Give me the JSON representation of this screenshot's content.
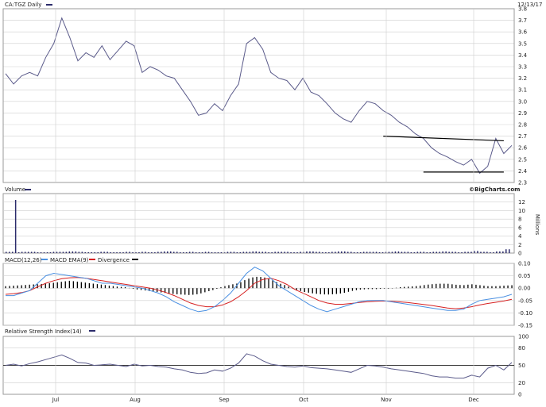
{
  "header": {
    "symbol_label": "CA:TGZ Daily",
    "date": "12/13/17",
    "watermark": "©BigCharts.com"
  },
  "x_axis": {
    "months": [
      "Jul",
      "Aug",
      "Sep",
      "Oct",
      "Nov",
      "Dec"
    ]
  },
  "colors": {
    "price": "#5a5a8a",
    "volume": "#2b2b6b",
    "macd": "#4a90e2",
    "ema": "#d62020",
    "divergence": "#000000",
    "rsi": "#5a5a8a",
    "trendline": "#000000"
  },
  "chart_data": [
    {
      "type": "line",
      "panel": "price",
      "label": "CA:TGZ Daily",
      "ylim": [
        2.3,
        3.8
      ],
      "yticks": [
        2.3,
        2.4,
        2.5,
        2.6,
        2.7,
        2.8,
        2.9,
        3.0,
        3.1,
        3.2,
        3.3,
        3.4,
        3.5,
        3.6,
        3.7,
        3.8
      ],
      "x": [
        0,
        2,
        4,
        6,
        8,
        10,
        12,
        14,
        16,
        18,
        20,
        22,
        24,
        26,
        28,
        30,
        32,
        34,
        36,
        38,
        40,
        42,
        44,
        46,
        48,
        50,
        52,
        54,
        56,
        58,
        60,
        62,
        64,
        66,
        68,
        70,
        72,
        74,
        76,
        78,
        80,
        82,
        84,
        86,
        88,
        90,
        92,
        94,
        96,
        98,
        100,
        102,
        104,
        106,
        108,
        110,
        112,
        114,
        116,
        118,
        120,
        122,
        124,
        126
      ],
      "y": [
        3.24,
        3.15,
        3.22,
        3.25,
        3.22,
        3.38,
        3.5,
        3.72,
        3.55,
        3.35,
        3.42,
        3.38,
        3.48,
        3.36,
        3.44,
        3.52,
        3.48,
        3.25,
        3.3,
        3.27,
        3.22,
        3.2,
        3.1,
        3.0,
        2.88,
        2.9,
        2.98,
        2.92,
        3.05,
        3.15,
        3.5,
        3.55,
        3.45,
        3.25,
        3.2,
        3.18,
        3.1,
        3.2,
        3.08,
        3.05,
        2.98,
        2.9,
        2.85,
        2.82,
        2.92,
        3.0,
        2.98,
        2.92,
        2.88,
        2.82,
        2.78,
        2.72,
        2.68,
        2.6,
        2.55,
        2.52,
        2.48,
        2.45,
        2.5,
        2.38,
        2.44,
        2.68,
        2.55,
        2.62
      ],
      "trendlines": [
        {
          "x": [
            94,
            124
          ],
          "y": [
            2.7,
            2.66
          ]
        },
        {
          "x": [
            104,
            124
          ],
          "y": [
            2.39,
            2.39
          ]
        }
      ]
    },
    {
      "type": "bar",
      "panel": "volume",
      "label": "Volume",
      "unit": "Millions",
      "ylim": [
        0,
        14
      ],
      "yticks": [
        0,
        2,
        4,
        6,
        8,
        10,
        12
      ],
      "x": [
        0,
        2,
        4,
        6,
        8,
        10,
        12,
        14,
        16,
        18,
        20,
        22,
        24,
        26,
        28,
        30,
        32,
        34,
        36,
        38,
        40,
        42,
        44,
        46,
        48,
        50,
        52,
        54,
        56,
        58,
        60,
        62,
        64,
        66,
        68,
        70,
        72,
        74,
        76,
        78,
        80,
        82,
        84,
        86,
        88,
        90,
        92,
        94,
        96,
        98,
        100,
        102,
        104,
        106,
        108,
        110,
        112,
        114,
        116,
        118,
        120,
        122,
        124,
        126
      ],
      "values": [
        0.3,
        0.2,
        12.5,
        0.3,
        0.2,
        0.2,
        0.3,
        0.3,
        0.4,
        0.3,
        0.2,
        0.2,
        0.3,
        0.2,
        0.2,
        0.3,
        0.2,
        0.3,
        0.2,
        0.3,
        0.4,
        0.3,
        0.2,
        0.3,
        0.2,
        0.3,
        0.2,
        0.2,
        0.3,
        0.2,
        0.3,
        0.4,
        0.3,
        0.2,
        0.3,
        0.3,
        0.2,
        0.3,
        0.4,
        0.3,
        0.2,
        0.3,
        0.4,
        0.3,
        0.2,
        0.3,
        0.3,
        0.2,
        0.3,
        0.4,
        0.3,
        0.2,
        0.3,
        0.2,
        0.3,
        0.4,
        0.3,
        0.2,
        0.3,
        0.5,
        0.3,
        0.2,
        0.4,
        0.9
      ]
    },
    {
      "type": "line",
      "panel": "macd",
      "label": "MACD(12,26)",
      "series": [
        {
          "name": "MACD(12,26)",
          "values": [
            -0.03,
            -0.03,
            -0.02,
            -0.01,
            0.02,
            0.05,
            0.06,
            0.055,
            0.05,
            0.045,
            0.04,
            0.03,
            0.02,
            0.02,
            0.015,
            0.01,
            0.005,
            0,
            -0.01,
            -0.02,
            -0.035,
            -0.055,
            -0.07,
            -0.085,
            -0.095,
            -0.09,
            -0.075,
            -0.05,
            -0.02,
            0.02,
            0.06,
            0.085,
            0.07,
            0.04,
            0.01,
            -0.01,
            -0.03,
            -0.05,
            -0.07,
            -0.085,
            -0.095,
            -0.085,
            -0.075,
            -0.065,
            -0.055,
            -0.05,
            -0.05,
            -0.05,
            -0.055,
            -0.06,
            -0.065,
            -0.07,
            -0.075,
            -0.08,
            -0.085,
            -0.09,
            -0.09,
            -0.085,
            -0.065,
            -0.05,
            -0.045,
            -0.04,
            -0.035,
            -0.025
          ]
        },
        {
          "name": "MACD EMA(9)",
          "values": [
            -0.025,
            -0.022,
            -0.018,
            -0.01,
            0.005,
            0.02,
            0.03,
            0.038,
            0.042,
            0.043,
            0.04,
            0.035,
            0.03,
            0.025,
            0.02,
            0.015,
            0.01,
            0.005,
            0,
            -0.008,
            -0.018,
            -0.03,
            -0.045,
            -0.06,
            -0.07,
            -0.075,
            -0.075,
            -0.068,
            -0.055,
            -0.035,
            -0.01,
            0.02,
            0.035,
            0.04,
            0.03,
            0.015,
            -0.005,
            -0.02,
            -0.035,
            -0.05,
            -0.06,
            -0.065,
            -0.065,
            -0.062,
            -0.058,
            -0.055,
            -0.053,
            -0.052,
            -0.053,
            -0.055,
            -0.058,
            -0.062,
            -0.066,
            -0.07,
            -0.075,
            -0.08,
            -0.083,
            -0.08,
            -0.075,
            -0.068,
            -0.062,
            -0.057,
            -0.052,
            -0.045
          ]
        }
      ],
      "divergence": [
        0.008,
        0.01,
        0.012,
        0.014,
        0.016,
        0.018,
        0.022,
        0.026,
        0.03,
        0.026,
        0.022,
        0.018,
        0.014,
        0.01,
        0.006,
        0.004,
        -0.004,
        -0.008,
        -0.012,
        -0.016,
        -0.02,
        -0.024,
        -0.026,
        -0.028,
        -0.024,
        -0.015,
        -0.006,
        0.006,
        0.014,
        0.02,
        0.036,
        0.046,
        0.045,
        0.036,
        0.02,
        0.01,
        -0.006,
        -0.014,
        -0.02,
        -0.024,
        -0.026,
        -0.024,
        -0.02,
        -0.012,
        -0.006,
        -0.004,
        -0.004,
        -0.002,
        -0.002,
        0.004,
        0.006,
        0.008,
        0.012,
        0.016,
        0.018,
        0.018,
        0.014,
        0.012,
        0.016,
        0.012,
        0.008,
        0.008,
        0.01,
        0.012
      ],
      "ylim": [
        -0.15,
        0.1
      ],
      "yticks": [
        0.1,
        0.05,
        0.0,
        -0.05,
        -0.1,
        -0.15
      ],
      "legend": [
        "MACD(12,26)",
        "MACD EMA(9)",
        "Divergence"
      ]
    },
    {
      "type": "line",
      "panel": "rsi",
      "label": "Relative Strength Index(14)",
      "ylim": [
        0,
        100
      ],
      "yticks": [
        0,
        20,
        50,
        80,
        100
      ],
      "reference": 50,
      "values": [
        50,
        52,
        49,
        53,
        56,
        60,
        64,
        68,
        62,
        55,
        54,
        50,
        51,
        52,
        50,
        48,
        52,
        49,
        50,
        48,
        47,
        44,
        42,
        38,
        36,
        37,
        42,
        40,
        45,
        54,
        70,
        66,
        58,
        52,
        50,
        48,
        47,
        49,
        46,
        45,
        44,
        42,
        40,
        38,
        44,
        50,
        49,
        47,
        44,
        42,
        40,
        38,
        36,
        32,
        30,
        30,
        28,
        28,
        33,
        30,
        45,
        50,
        42,
        55
      ]
    }
  ]
}
